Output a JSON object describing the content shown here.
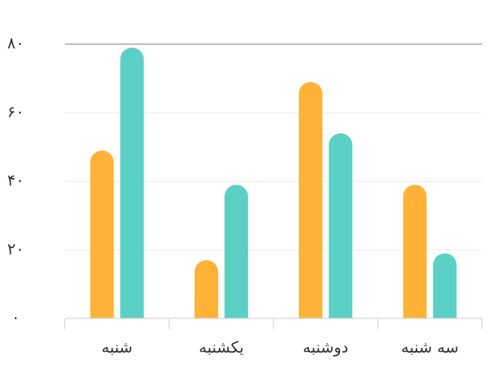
{
  "chart_data": {
    "type": "bar",
    "categories": [
      "شنبه",
      "یکشنبه",
      "دوشنبه",
      "سه شنبه"
    ],
    "series": [
      {
        "values": [
          49,
          17,
          69,
          39
        ],
        "color": "#FFB236"
      },
      {
        "values": [
          79,
          39,
          54,
          19
        ],
        "color": "#5BD0C5"
      }
    ],
    "ylim": [
      0,
      80
    ],
    "yticks": [
      0,
      20,
      40,
      60,
      80
    ],
    "ytick_labels": [
      "۰",
      "۲۰",
      "۴۰",
      "۶۰",
      "۸۰"
    ],
    "grid": true,
    "title": "",
    "xlabel": "",
    "ylabel": ""
  }
}
